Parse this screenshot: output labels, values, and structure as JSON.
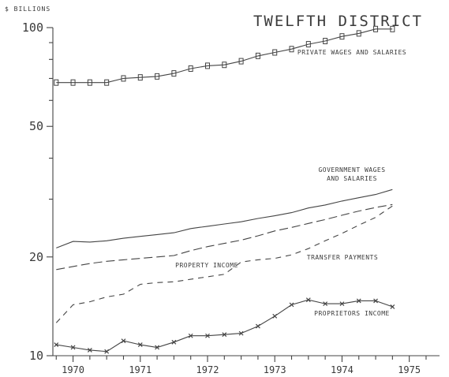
{
  "chart_data": {
    "type": "line",
    "title": "TWELFTH DISTRICT",
    "unit_label": "$ BILLIONS",
    "y_scale": "log",
    "ylim": [
      10,
      100
    ],
    "y_ticks": [
      {
        "value": 10,
        "label": "10"
      },
      {
        "value": 20,
        "label": "20"
      },
      {
        "value": 50,
        "label": "50"
      },
      {
        "value": 100,
        "label": "100"
      }
    ],
    "xlim": [
      1969.7,
      1975.45
    ],
    "x_ticks": [
      {
        "value": 1970,
        "label": "1970"
      },
      {
        "value": 1971,
        "label": "1971"
      },
      {
        "value": 1972,
        "label": "1972"
      },
      {
        "value": 1973,
        "label": "1973"
      },
      {
        "value": 1974,
        "label": "1974"
      },
      {
        "value": 1975,
        "label": "1975"
      }
    ],
    "x": [
      1969.75,
      1970.0,
      1970.25,
      1970.5,
      1970.75,
      1971.0,
      1971.25,
      1971.5,
      1971.75,
      1972.0,
      1972.25,
      1972.5,
      1972.75,
      1973.0,
      1973.25,
      1973.5,
      1973.75,
      1974.0,
      1974.25,
      1974.5,
      1974.75
    ],
    "grid": false,
    "series": [
      {
        "name": "PRIVATE WAGES AND SALARIES",
        "label_lines": [
          "PRIVATE WAGES AND SALARIES"
        ],
        "marker": "square",
        "style": "solid",
        "values": [
          68,
          68,
          68,
          68,
          70,
          70.5,
          71,
          72.5,
          75,
          76.5,
          77,
          79,
          82,
          84,
          86,
          89,
          91,
          94,
          96,
          99,
          99
        ]
      },
      {
        "name": "GOVERNMENT WAGES AND SALARIES",
        "label_lines": [
          "GOVERNMENT WAGES",
          "AND SALARIES"
        ],
        "marker": "none",
        "style": "solid",
        "values": [
          21.3,
          22.3,
          22.2,
          22.4,
          22.8,
          23.1,
          23.4,
          23.7,
          24.4,
          24.8,
          25.2,
          25.6,
          26.2,
          26.7,
          27.3,
          28.2,
          28.8,
          29.6,
          30.3,
          31,
          32.1
        ]
      },
      {
        "name": "PROPERTY INCOME",
        "label_lines": [
          "PROPERTY INCOME"
        ],
        "marker": "none",
        "style": "long-dash",
        "values": [
          18.3,
          18.7,
          19.1,
          19.4,
          19.6,
          19.8,
          20,
          20.2,
          20.9,
          21.5,
          22,
          22.5,
          23.2,
          24,
          24.6,
          25.3,
          26,
          26.8,
          27.6,
          28.3,
          28.9
        ]
      },
      {
        "name": "TRANSFER PAYMENTS",
        "label_lines": [
          "TRANSFER PAYMENTS"
        ],
        "marker": "none",
        "style": "short-dash",
        "values": [
          12.6,
          14.3,
          14.6,
          15.1,
          15.4,
          16.5,
          16.7,
          16.8,
          17.1,
          17.4,
          17.7,
          19.3,
          19.6,
          19.8,
          20.3,
          21.2,
          22.4,
          23.6,
          25,
          26.4,
          28.6
        ]
      },
      {
        "name": "PROPRIETORS INCOME",
        "label_lines": [
          "PROPRIETORS INCOME"
        ],
        "marker": "x",
        "style": "solid",
        "values": [
          10.8,
          10.6,
          10.4,
          10.3,
          11.1,
          10.8,
          10.6,
          11,
          11.5,
          11.5,
          11.6,
          11.7,
          12.3,
          13.2,
          14.3,
          14.8,
          14.4,
          14.4,
          14.7,
          14.7,
          14.1
        ]
      }
    ]
  }
}
